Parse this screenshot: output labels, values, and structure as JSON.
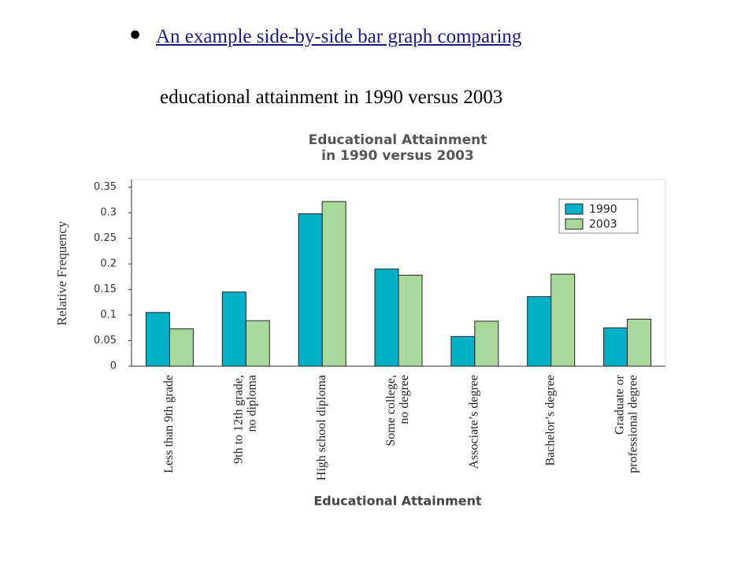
{
  "slide": {
    "bullet": "An example side-by-side bar graph comparing",
    "subtitle": "educational attainment in 1990 versus 2003"
  },
  "chart_data": {
    "type": "bar",
    "title": [
      "Educational Attainment",
      "in 1990 versus 2003"
    ],
    "x_label": "Educational Attainment",
    "y_label": "Relative Frequency",
    "categories": [
      [
        "Less than 9th grade"
      ],
      [
        "9th to 12th grade,",
        "no diploma"
      ],
      [
        "High school diploma"
      ],
      [
        "Some college,",
        "no degree"
      ],
      [
        "Associate’s degree"
      ],
      [
        "Bachelor’s degree"
      ],
      [
        "Graduate or",
        "professional degree"
      ]
    ],
    "series": [
      {
        "name": "1990",
        "color": "#00b1c9",
        "values": [
          0.105,
          0.145,
          0.298,
          0.19,
          0.058,
          0.136,
          0.075
        ]
      },
      {
        "name": "2003",
        "color": "#a9d89b",
        "values": [
          0.073,
          0.089,
          0.322,
          0.178,
          0.088,
          0.18,
          0.092
        ]
      }
    ],
    "ylim": [
      0,
      0.365
    ],
    "yticks": [
      0,
      0.05,
      0.1,
      0.15,
      0.2,
      0.25,
      0.3,
      0.35
    ],
    "legend": "upper-right"
  }
}
